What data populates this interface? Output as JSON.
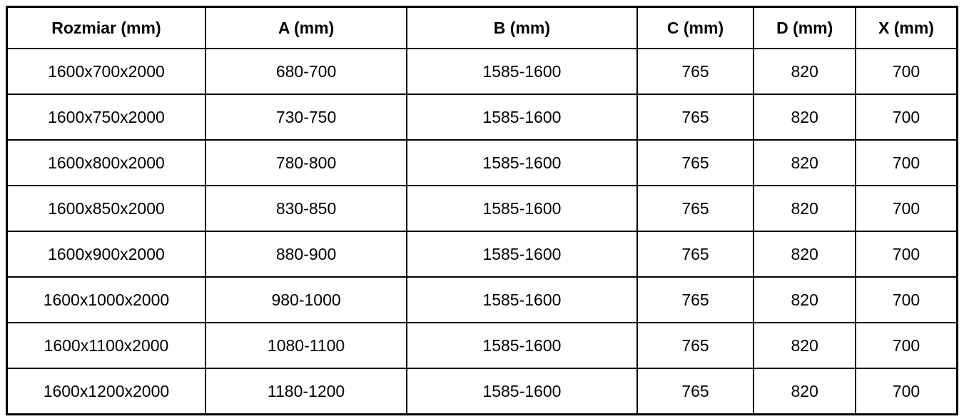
{
  "table": {
    "columns": [
      "Rozmiar (mm)",
      "A (mm)",
      "B (mm)",
      "C (mm)",
      "D (mm)",
      "X (mm)"
    ],
    "rows": [
      [
        "1600x700x2000",
        "680-700",
        "1585-1600",
        "765",
        "820",
        "700"
      ],
      [
        "1600x750x2000",
        "730-750",
        "1585-1600",
        "765",
        "820",
        "700"
      ],
      [
        "1600x800x2000",
        "780-800",
        "1585-1600",
        "765",
        "820",
        "700"
      ],
      [
        "1600x850x2000",
        "830-850",
        "1585-1600",
        "765",
        "820",
        "700"
      ],
      [
        "1600x900x2000",
        "880-900",
        "1585-1600",
        "765",
        "820",
        "700"
      ],
      [
        "1600x1000x2000",
        "980-1000",
        "1585-1600",
        "765",
        "820",
        "700"
      ],
      [
        "1600x1100x2000",
        "1080-1100",
        "1585-1600",
        "765",
        "820",
        "700"
      ],
      [
        "1600x1200x2000",
        "1180-1200",
        "1585-1600",
        "765",
        "820",
        "700"
      ]
    ],
    "colors": {
      "border": "#000000",
      "text": "#000000",
      "background": "#ffffff"
    }
  }
}
